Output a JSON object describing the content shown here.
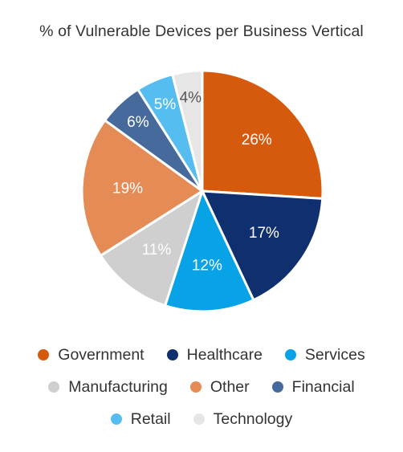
{
  "chart_data": {
    "type": "pie",
    "title": "% of Vulnerable Devices per Business Vertical",
    "slices": [
      {
        "name": "Government",
        "value": 26,
        "label": "26%",
        "color": "#d55a0d",
        "label_color": "#ffffff"
      },
      {
        "name": "Healthcare",
        "value": 17,
        "label": "17%",
        "color": "#0f2f6e",
        "label_color": "#ffffff"
      },
      {
        "name": "Services",
        "value": 12,
        "label": "12%",
        "color": "#08a2e6",
        "label_color": "#ffffff"
      },
      {
        "name": "Manufacturing",
        "value": 11,
        "label": "11%",
        "color": "#cfcfcf",
        "label_color": "#ffffff"
      },
      {
        "name": "Other",
        "value": 19,
        "label": "19%",
        "color": "#e58b55",
        "label_color": "#ffffff"
      },
      {
        "name": "Financial",
        "value": 6,
        "label": "6%",
        "color": "#466a9b",
        "label_color": "#ffffff"
      },
      {
        "name": "Retail",
        "value": 5,
        "label": "5%",
        "color": "#56bdf0",
        "label_color": "#ffffff"
      },
      {
        "name": "Technology",
        "value": 4,
        "label": "4%",
        "color": "#e6e6e6",
        "label_color": "#555555"
      }
    ],
    "legend_placement": "bottom",
    "start_angle": "12 o'clock",
    "direction": "clockwise",
    "slice_border_color": "#ffffff"
  }
}
